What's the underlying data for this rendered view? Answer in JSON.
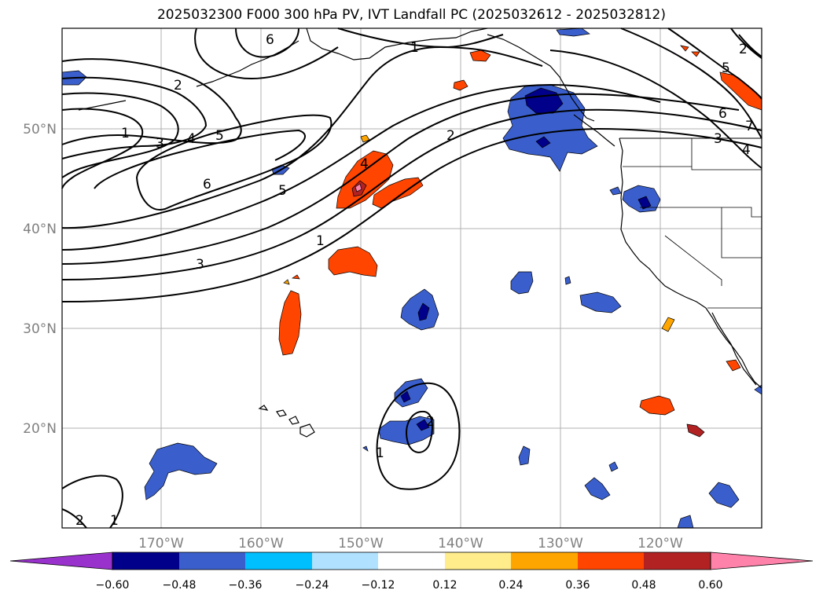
{
  "title": "2025032300 F000 300 hPa PV, IVT Landfall PC (2025032612 - 2025032812)",
  "lon_labels": [
    "170°W",
    "160°W",
    "150°W",
    "140°W",
    "130°W",
    "120°W"
  ],
  "lat_labels": [
    "50°N",
    "40°N",
    "30°N",
    "20°N"
  ],
  "pv_contour_labels": [
    "1",
    "2",
    "3",
    "4",
    "5",
    "6",
    "1",
    "2",
    "3",
    "4",
    "5",
    "6",
    "1",
    "2",
    "3",
    "4",
    "5",
    "6",
    "7",
    "1",
    "2",
    "2",
    "1"
  ],
  "colorbar": {
    "tick_labels": [
      "−0.60",
      "−0.48",
      "−0.36",
      "−0.24",
      "−0.12",
      "0.12",
      "0.24",
      "0.36",
      "0.48",
      "0.60"
    ],
    "colors": [
      "#9932cc",
      "#00008b",
      "#3a5fcd",
      "#00bfff",
      "#b0e2ff",
      "#ffffff",
      "#ffec8b",
      "#ffa500",
      "#ff4500",
      "#b22222",
      "#ff82ab",
      "#ff82ab"
    ]
  },
  "colors": {
    "neg_strong": "#00008b",
    "neg_mid": "#3a5fcd",
    "neg_light": "#00bfff",
    "pos_light": "#ffec8b",
    "pos_mid": "#ffa500",
    "pos_strong": "#ff4500",
    "pos_max": "#b22222",
    "pos_extreme": "#ff82ab",
    "gridline": "#b0b0b0"
  }
}
